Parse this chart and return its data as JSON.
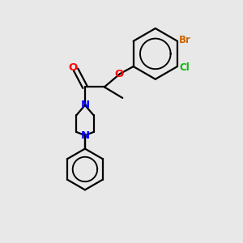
{
  "background_color": "#e8e8e8",
  "bond_color": "#000000",
  "atom_colors": {
    "O_carbonyl": "#ff0000",
    "O_ether": "#ff0000",
    "N": "#0000ff",
    "Cl": "#00bb00",
    "Br": "#cc6600",
    "C": "#000000"
  },
  "figsize": [
    3.0,
    3.0
  ],
  "dpi": 100,
  "xlim": [
    0,
    10
  ],
  "ylim": [
    0,
    10
  ]
}
